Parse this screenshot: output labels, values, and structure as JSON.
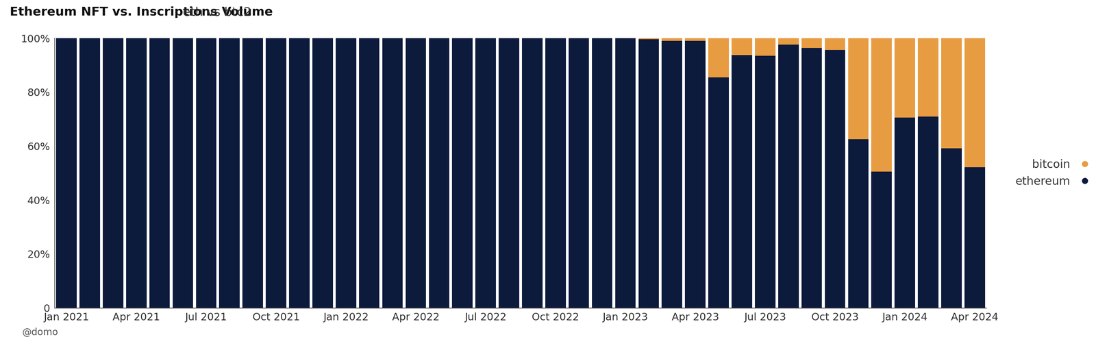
{
  "chart_data": {
    "type": "bar",
    "title": "Ethereum NFT vs. Inscriptions Volume",
    "subtitle": "eth vs btc2",
    "annotations": [
      "@domo"
    ],
    "categories": [
      "Jan 2021",
      null,
      null,
      "Apr 2021",
      null,
      null,
      "Jul 2021",
      null,
      null,
      "Oct 2021",
      null,
      null,
      "Jan 2022",
      null,
      null,
      "Apr 2022",
      null,
      null,
      "Jul 2022",
      null,
      null,
      "Oct 2022",
      null,
      null,
      "Jan 2023",
      null,
      null,
      "Apr 2023",
      null,
      null,
      "Jul 2023",
      null,
      null,
      "Oct 2023",
      null,
      null,
      "Jan 2024",
      null,
      null,
      "Apr 2024"
    ],
    "stacked": true,
    "series": [
      {
        "name": "ethereum",
        "color": "#0c1a3c",
        "values": [
          100,
          100,
          100,
          100,
          100,
          100,
          100,
          100,
          100,
          100,
          100,
          100,
          100,
          100,
          100,
          100,
          100,
          100,
          100,
          100,
          100,
          100,
          100,
          100,
          100,
          99.7,
          99,
          99,
          85.5,
          93.8,
          93.5,
          97.7,
          96.4,
          95.6,
          62.6,
          50.6,
          70.6,
          71,
          59.2,
          52.2
        ]
      },
      {
        "name": "bitcoin",
        "color": "#e89c42",
        "values": [
          0,
          0,
          0,
          0,
          0,
          0,
          0,
          0,
          0,
          0,
          0,
          0,
          0,
          0,
          0,
          0,
          0,
          0,
          0,
          0,
          0,
          0,
          0,
          0,
          0,
          0.3,
          1,
          1,
          14.5,
          6.2,
          6.5,
          2.3,
          3.6,
          4.4,
          37.4,
          49.4,
          29.4,
          29,
          40.8,
          47.8
        ]
      }
    ],
    "ylim": [
      0,
      100
    ],
    "yticks": [
      0,
      {
        "value": 20,
        "label": "20%"
      },
      {
        "value": 40,
        "label": "40%"
      },
      {
        "value": 60,
        "label": "60%"
      },
      {
        "value": 80,
        "label": "80%"
      },
      {
        "value": 100,
        "label": "100%"
      }
    ],
    "grid": false,
    "legend": "right"
  }
}
